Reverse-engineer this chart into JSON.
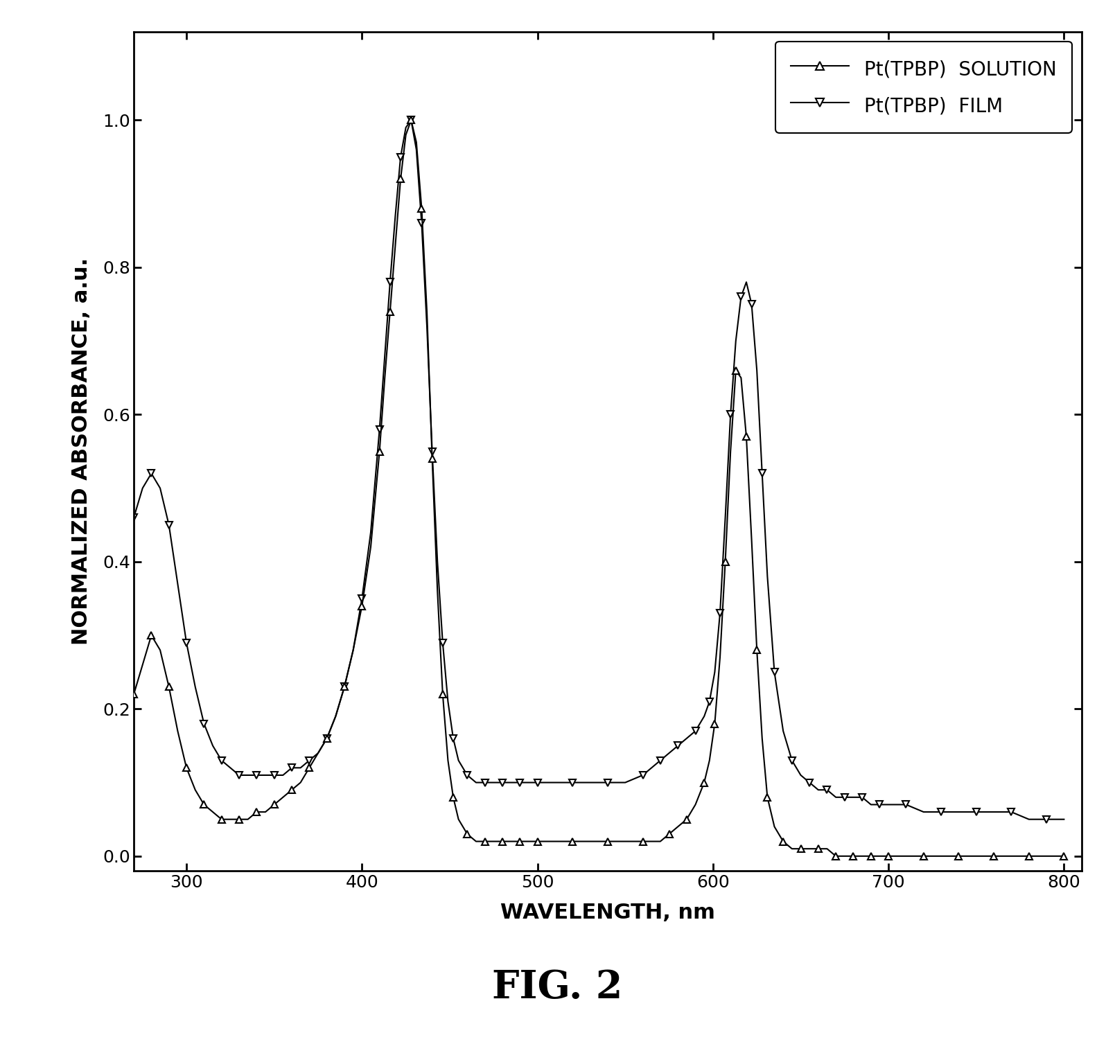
{
  "title": "FIG. 2",
  "xlabel": "WAVELENGTH, nm",
  "ylabel": "NORMALIZED ABSORBANCE, a.u.",
  "xlim": [
    270,
    810
  ],
  "ylim": [
    -0.02,
    1.12
  ],
  "xticks": [
    300,
    400,
    500,
    600,
    700,
    800
  ],
  "yticks": [
    0.0,
    0.2,
    0.4,
    0.6,
    0.8,
    1.0
  ],
  "background_color": "#ffffff",
  "legend_labels": [
    "Pt(TPBP)  SOLUTION",
    "Pt(TPBP)  FILM"
  ],
  "solution_color": "#000000",
  "film_color": "#000000",
  "solution_marker": "^",
  "film_marker": "v",
  "solution_x": [
    270,
    275,
    280,
    285,
    290,
    295,
    300,
    305,
    310,
    315,
    320,
    325,
    330,
    335,
    340,
    345,
    350,
    355,
    360,
    365,
    370,
    375,
    380,
    385,
    390,
    395,
    400,
    405,
    410,
    413,
    416,
    419,
    422,
    425,
    428,
    431,
    434,
    437,
    440,
    443,
    446,
    449,
    452,
    455,
    460,
    465,
    470,
    475,
    480,
    485,
    490,
    495,
    500,
    510,
    520,
    530,
    540,
    550,
    560,
    570,
    575,
    580,
    585,
    590,
    595,
    598,
    601,
    604,
    607,
    610,
    613,
    616,
    619,
    622,
    625,
    628,
    631,
    635,
    640,
    645,
    650,
    655,
    660,
    665,
    670,
    675,
    680,
    685,
    690,
    695,
    700,
    710,
    720,
    730,
    740,
    750,
    760,
    770,
    780,
    790,
    800
  ],
  "solution_y": [
    0.22,
    0.26,
    0.3,
    0.28,
    0.23,
    0.17,
    0.12,
    0.09,
    0.07,
    0.06,
    0.05,
    0.05,
    0.05,
    0.05,
    0.06,
    0.06,
    0.07,
    0.08,
    0.09,
    0.1,
    0.12,
    0.14,
    0.16,
    0.19,
    0.23,
    0.28,
    0.34,
    0.42,
    0.55,
    0.65,
    0.74,
    0.83,
    0.92,
    0.98,
    1.0,
    0.97,
    0.88,
    0.74,
    0.54,
    0.36,
    0.22,
    0.13,
    0.08,
    0.05,
    0.03,
    0.02,
    0.02,
    0.02,
    0.02,
    0.02,
    0.02,
    0.02,
    0.02,
    0.02,
    0.02,
    0.02,
    0.02,
    0.02,
    0.02,
    0.02,
    0.03,
    0.04,
    0.05,
    0.07,
    0.1,
    0.13,
    0.18,
    0.27,
    0.4,
    0.55,
    0.66,
    0.65,
    0.57,
    0.43,
    0.28,
    0.16,
    0.08,
    0.04,
    0.02,
    0.01,
    0.01,
    0.01,
    0.01,
    0.01,
    0.0,
    0.0,
    0.0,
    0.0,
    0.0,
    0.0,
    0.0,
    0.0,
    0.0,
    0.0,
    0.0,
    0.0,
    0.0,
    0.0,
    0.0,
    0.0,
    0.0
  ],
  "film_x": [
    270,
    275,
    280,
    285,
    290,
    295,
    300,
    305,
    310,
    315,
    320,
    325,
    330,
    335,
    340,
    345,
    350,
    355,
    360,
    365,
    370,
    375,
    380,
    385,
    390,
    395,
    400,
    405,
    410,
    413,
    416,
    419,
    422,
    425,
    428,
    431,
    434,
    437,
    440,
    443,
    446,
    449,
    452,
    455,
    460,
    465,
    470,
    475,
    480,
    485,
    490,
    495,
    500,
    510,
    520,
    530,
    540,
    550,
    560,
    565,
    570,
    575,
    580,
    585,
    590,
    595,
    598,
    601,
    604,
    607,
    610,
    613,
    616,
    619,
    622,
    625,
    628,
    631,
    635,
    640,
    645,
    650,
    655,
    660,
    665,
    670,
    675,
    680,
    685,
    690,
    695,
    700,
    710,
    720,
    730,
    740,
    750,
    760,
    770,
    780,
    790,
    800
  ],
  "film_y": [
    0.46,
    0.5,
    0.52,
    0.5,
    0.45,
    0.37,
    0.29,
    0.23,
    0.18,
    0.15,
    0.13,
    0.12,
    0.11,
    0.11,
    0.11,
    0.11,
    0.11,
    0.11,
    0.12,
    0.12,
    0.13,
    0.14,
    0.16,
    0.19,
    0.23,
    0.28,
    0.35,
    0.44,
    0.58,
    0.68,
    0.78,
    0.87,
    0.95,
    0.99,
    1.0,
    0.96,
    0.86,
    0.72,
    0.55,
    0.4,
    0.29,
    0.21,
    0.16,
    0.13,
    0.11,
    0.1,
    0.1,
    0.1,
    0.1,
    0.1,
    0.1,
    0.1,
    0.1,
    0.1,
    0.1,
    0.1,
    0.1,
    0.1,
    0.11,
    0.12,
    0.13,
    0.14,
    0.15,
    0.16,
    0.17,
    0.19,
    0.21,
    0.25,
    0.33,
    0.46,
    0.6,
    0.7,
    0.76,
    0.78,
    0.75,
    0.66,
    0.52,
    0.38,
    0.25,
    0.17,
    0.13,
    0.11,
    0.1,
    0.09,
    0.09,
    0.08,
    0.08,
    0.08,
    0.08,
    0.07,
    0.07,
    0.07,
    0.07,
    0.06,
    0.06,
    0.06,
    0.06,
    0.06,
    0.06,
    0.05,
    0.05,
    0.05
  ]
}
